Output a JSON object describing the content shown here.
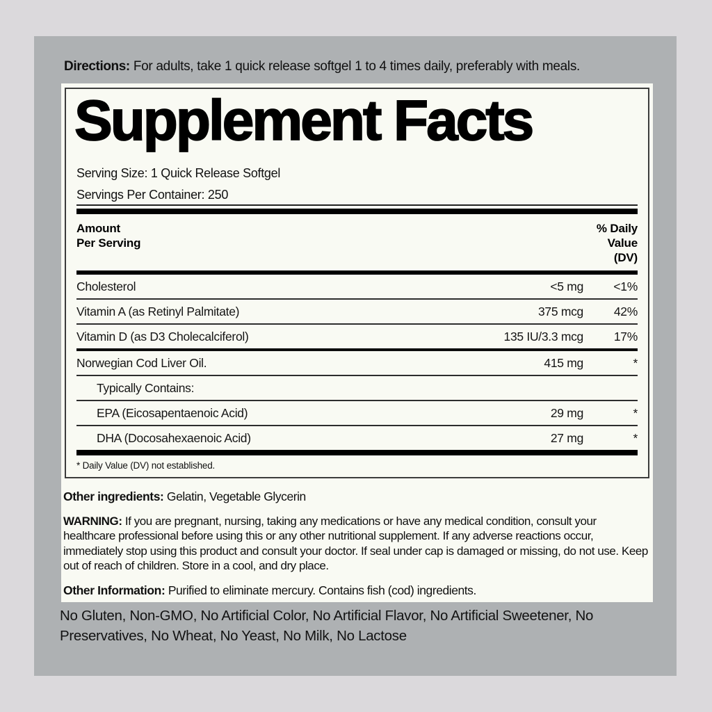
{
  "directions": {
    "label": "Directions:",
    "text": "For adults, take 1 quick release softgel 1 to 4 times daily, preferably with meals."
  },
  "facts": {
    "title": "Supplement Facts",
    "serving_size": "Serving Size: 1 Quick Release Softgel",
    "servings_per_container": "Servings Per Container: 250",
    "header": {
      "amount_line1": "Amount",
      "amount_line2": "Per Serving",
      "dv_line1": "% Daily",
      "dv_line2": "Value",
      "dv_line3": "(DV)"
    },
    "rows": [
      {
        "name": "Cholesterol",
        "amount": "<5 mg",
        "dv": "<1%"
      },
      {
        "name": "Vitamin A (as Retinyl Palmitate)",
        "amount": "375 mcg",
        "dv": "42%"
      },
      {
        "name": "Vitamin D (as D3 Cholecalciferol)",
        "amount": "135 IU/3.3 mcg",
        "dv": "17%"
      },
      {
        "name": "Norwegian Cod Liver Oil.",
        "amount": "415 mg",
        "dv": "*"
      },
      {
        "name": "Typically Contains:",
        "amount": "",
        "dv": ""
      },
      {
        "name": "EPA (Eicosapentaenoic Acid)",
        "amount": "29 mg",
        "dv": "*"
      },
      {
        "name": "DHA (Docosahexaenoic Acid)",
        "amount": "27 mg",
        "dv": "*"
      }
    ],
    "footnote": "* Daily Value (DV) not established."
  },
  "other_ingredients": {
    "label": "Other ingredients:",
    "text": "Gelatin, Vegetable Glycerin"
  },
  "warning": {
    "label": "WARNING:",
    "text": "If you are pregnant, nursing, taking any medications or have any medical condition, consult your healthcare professional before using this or any other nutritional supplement. If any adverse reactions occur, immediately stop using this product and consult your doctor. If seal under cap is damaged or missing, do not use. Keep out of reach of children. Store in a cool, and dry place."
  },
  "other_information": {
    "label": "Other Information:",
    "text": "Purified to eliminate mercury. Contains fish (cod) ingredients."
  },
  "claims": "No Gluten, Non-GMO, No Artificial Color, No Artificial Flavor, No Artificial Sweetener, No Preservatives, No Wheat, No Yeast, No Milk, No Lactose",
  "colors": {
    "page_background": "#dbd9dc",
    "panel_background": "#aeb1b3",
    "label_background": "#f9faf3",
    "text": "#141414",
    "rule": "#000000"
  }
}
